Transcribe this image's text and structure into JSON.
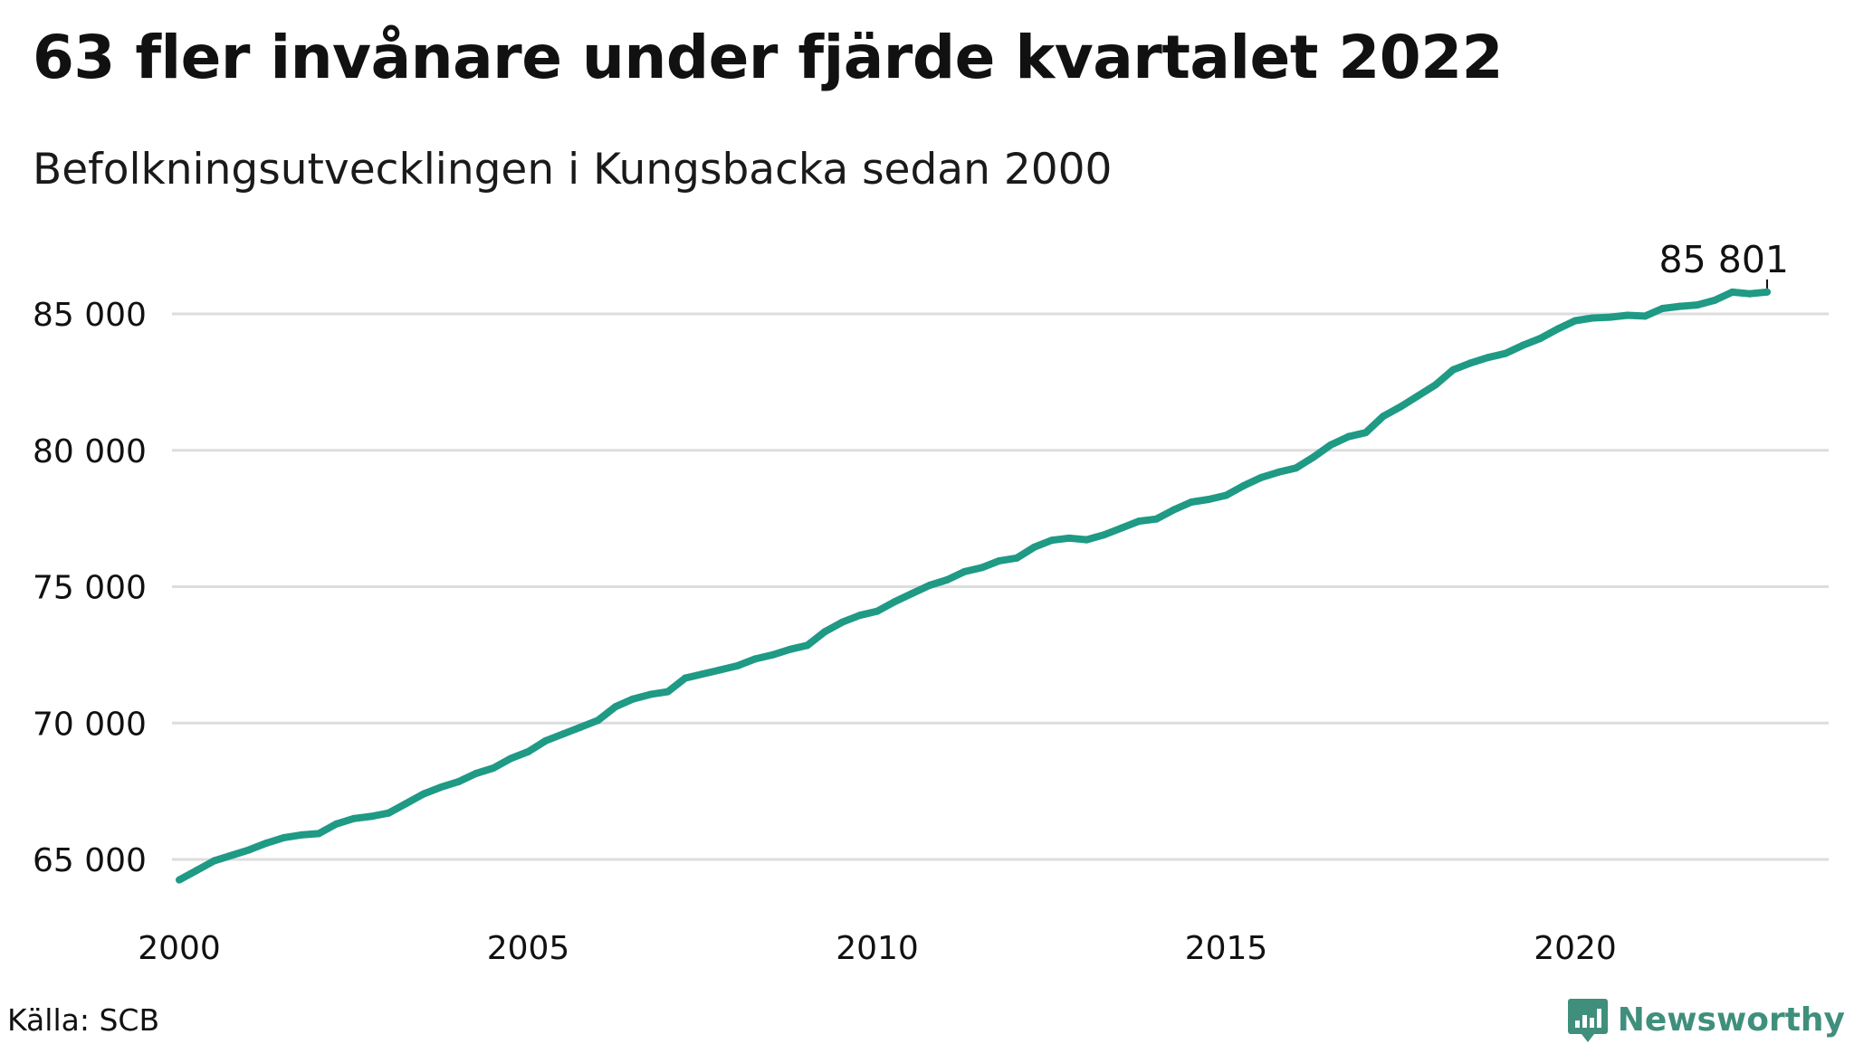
{
  "title": "63 fler invånare under fjärde kvartalet 2022",
  "subtitle": "Befolkningsutvecklingen i Kungsbacka sedan 2000",
  "source": "Källa: SCB",
  "brand": {
    "name": "Newsworthy",
    "icon": "newsworthy-logo-icon",
    "color": "#3f8f7c"
  },
  "colors": {
    "line": "#1e9a85",
    "grid": "#dddddd",
    "text": "#111111"
  },
  "chart_data": {
    "type": "line",
    "title": "63 fler invånare under fjärde kvartalet 2022",
    "subtitle": "Befolkningsutvecklingen i Kungsbacka sedan 2000",
    "xlabel": "",
    "ylabel": "",
    "xlim": [
      2000,
      2023
    ],
    "ylim": [
      64000,
      86500
    ],
    "x_ticks": [
      2000,
      2005,
      2010,
      2015,
      2020
    ],
    "x_tick_labels": [
      "2000",
      "2005",
      "2010",
      "2015",
      "2020"
    ],
    "y_ticks": [
      65000,
      70000,
      75000,
      80000,
      85000
    ],
    "y_tick_labels": [
      "65 000",
      "70 000",
      "75 000",
      "80 000",
      "85 000"
    ],
    "grid": true,
    "legend": "none",
    "annotation": {
      "x": 2022.75,
      "y": 85801,
      "label": "85 801"
    },
    "series": [
      {
        "points": [
          [
            2000.0,
            64250
          ],
          [
            2000.25,
            64600
          ],
          [
            2000.5,
            64950
          ],
          [
            2000.75,
            65150
          ],
          [
            2001.0,
            65350
          ],
          [
            2001.25,
            65600
          ],
          [
            2001.5,
            65800
          ],
          [
            2001.75,
            65900
          ],
          [
            2002.0,
            65950
          ],
          [
            2002.25,
            66300
          ],
          [
            2002.5,
            66500
          ],
          [
            2002.75,
            66580
          ],
          [
            2003.0,
            66700
          ],
          [
            2003.25,
            67050
          ],
          [
            2003.5,
            67400
          ],
          [
            2003.75,
            67650
          ],
          [
            2004.0,
            67850
          ],
          [
            2004.25,
            68150
          ],
          [
            2004.5,
            68350
          ],
          [
            2004.75,
            68700
          ],
          [
            2005.0,
            68950
          ],
          [
            2005.25,
            69350
          ],
          [
            2005.5,
            69600
          ],
          [
            2005.75,
            69850
          ],
          [
            2006.0,
            70100
          ],
          [
            2006.25,
            70600
          ],
          [
            2006.5,
            70880
          ],
          [
            2006.75,
            71050
          ],
          [
            2007.0,
            71150
          ],
          [
            2007.25,
            71650
          ],
          [
            2007.5,
            71800
          ],
          [
            2007.75,
            71950
          ],
          [
            2008.0,
            72100
          ],
          [
            2008.25,
            72350
          ],
          [
            2008.5,
            72500
          ],
          [
            2008.75,
            72700
          ],
          [
            2009.0,
            72850
          ],
          [
            2009.25,
            73350
          ],
          [
            2009.5,
            73700
          ],
          [
            2009.75,
            73950
          ],
          [
            2010.0,
            74100
          ],
          [
            2010.25,
            74450
          ],
          [
            2010.5,
            74750
          ],
          [
            2010.75,
            75050
          ],
          [
            2011.0,
            75250
          ],
          [
            2011.25,
            75550
          ],
          [
            2011.5,
            75700
          ],
          [
            2011.75,
            75950
          ],
          [
            2012.0,
            76050
          ],
          [
            2012.25,
            76450
          ],
          [
            2012.5,
            76700
          ],
          [
            2012.75,
            76780
          ],
          [
            2013.0,
            76720
          ],
          [
            2013.25,
            76900
          ],
          [
            2013.5,
            77150
          ],
          [
            2013.75,
            77400
          ],
          [
            2014.0,
            77480
          ],
          [
            2014.25,
            77820
          ],
          [
            2014.5,
            78100
          ],
          [
            2014.75,
            78200
          ],
          [
            2015.0,
            78350
          ],
          [
            2015.25,
            78700
          ],
          [
            2015.5,
            79000
          ],
          [
            2015.75,
            79200
          ],
          [
            2016.0,
            79350
          ],
          [
            2016.25,
            79750
          ],
          [
            2016.5,
            80200
          ],
          [
            2016.75,
            80500
          ],
          [
            2017.0,
            80650
          ],
          [
            2017.25,
            81250
          ],
          [
            2017.5,
            81600
          ],
          [
            2017.75,
            82000
          ],
          [
            2018.0,
            82400
          ],
          [
            2018.25,
            82950
          ],
          [
            2018.5,
            83200
          ],
          [
            2018.75,
            83400
          ],
          [
            2019.0,
            83550
          ],
          [
            2019.25,
            83850
          ],
          [
            2019.5,
            84100
          ],
          [
            2019.75,
            84450
          ],
          [
            2020.0,
            84750
          ],
          [
            2020.25,
            84850
          ],
          [
            2020.5,
            84880
          ],
          [
            2020.75,
            84950
          ],
          [
            2021.0,
            84920
          ],
          [
            2021.25,
            85200
          ],
          [
            2021.5,
            85280
          ],
          [
            2021.75,
            85330
          ],
          [
            2022.0,
            85500
          ],
          [
            2022.25,
            85800
          ],
          [
            2022.5,
            85738
          ],
          [
            2022.75,
            85801
          ]
        ]
      }
    ]
  }
}
